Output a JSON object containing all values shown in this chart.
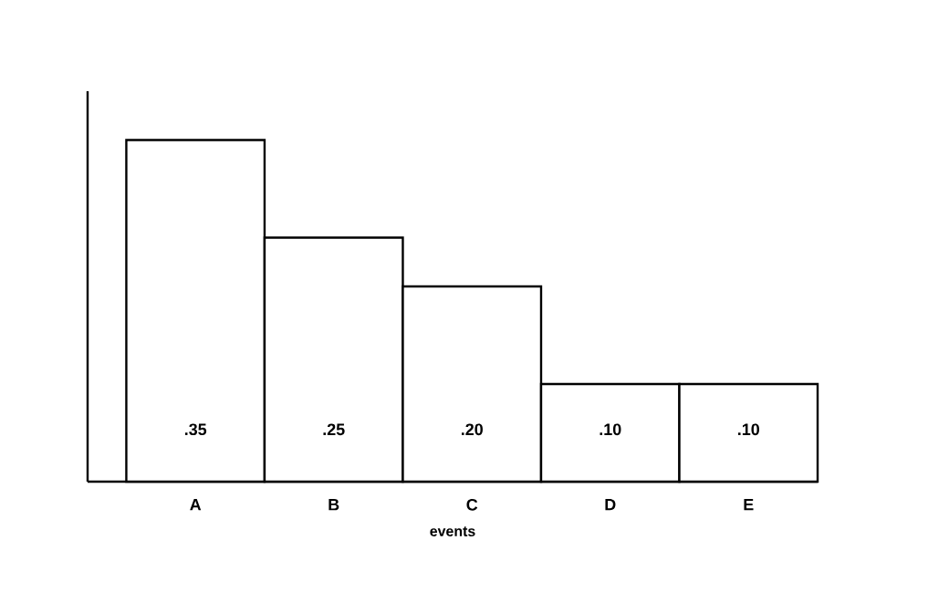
{
  "chart_data": {
    "type": "bar",
    "xlabel": "events",
    "categories": [
      "A",
      "B",
      "C",
      "D",
      "E"
    ],
    "values": [
      0.35,
      0.25,
      0.2,
      0.1,
      0.1
    ],
    "value_labels": [
      ".35",
      ".25",
      ".20",
      ".10",
      ".10"
    ],
    "color": "#ffffff",
    "ylim": [
      0,
      0.4
    ],
    "tick_labels": "x"
  }
}
